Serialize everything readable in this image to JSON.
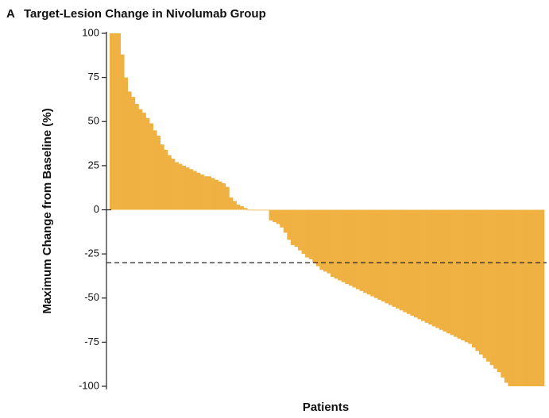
{
  "chart_data": {
    "type": "waterfall",
    "panel": "A",
    "title": "Target-Lesion Change in Nivolumab Group",
    "y_label": "Maximum Change from Baseline (%)",
    "x_label": "Patients",
    "values": [
      100,
      100,
      100,
      88,
      75,
      67,
      64,
      60,
      57,
      55,
      52,
      49,
      45,
      42,
      37,
      34,
      31,
      29,
      27,
      26,
      25,
      24,
      23,
      22,
      21,
      20,
      19,
      19,
      18,
      17,
      16,
      15,
      13,
      7,
      5,
      3,
      2,
      1,
      0,
      0,
      0,
      0,
      0,
      0,
      -6,
      -7,
      -8,
      -10,
      -13,
      -17,
      -20,
      -21,
      -23,
      -25,
      -27,
      -28,
      -30,
      -32,
      -34,
      -35,
      -36,
      -38,
      -39,
      -40,
      -41,
      -42,
      -43,
      -44,
      -45,
      -46,
      -47,
      -48,
      -49,
      -50,
      -51,
      -52,
      -53,
      -54,
      -55,
      -56,
      -57,
      -58,
      -59,
      -60,
      -61,
      -62,
      -63,
      -64,
      -65,
      -66,
      -67,
      -68,
      -69,
      -70,
      -71,
      -72,
      -73,
      -74,
      -75,
      -76,
      -78,
      -80,
      -82,
      -84,
      -86,
      -88,
      -90,
      -92,
      -95,
      -98,
      -100,
      -100,
      -100,
      -100,
      -100,
      -100,
      -100,
      -100,
      -100,
      -100
    ],
    "color": "#efb142",
    "threshold": -30,
    "ylim": [
      -100,
      100
    ],
    "yticks": [
      100,
      75,
      50,
      25,
      0,
      -25,
      -50,
      -75,
      -100
    ]
  }
}
